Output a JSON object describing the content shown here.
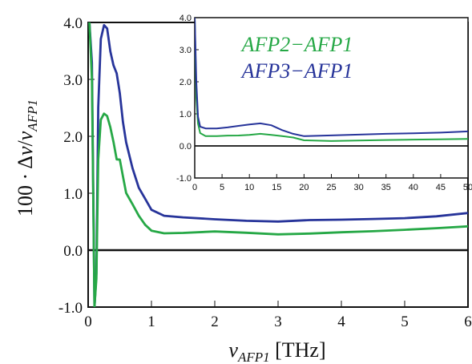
{
  "chart_data": [
    {
      "type": "line",
      "xlabel": "ν_AFP1 [THz]",
      "ylabel": "100·Δν/ν_AFP1",
      "xlim": [
        0,
        6
      ],
      "ylim": [
        -1.0,
        4.0
      ],
      "xticks": [
        "0",
        "1",
        "2",
        "3",
        "4",
        "5",
        "6"
      ],
      "yticks": [
        "-1.0",
        "0.0",
        "1.0",
        "2.0",
        "3.0",
        "4.0"
      ],
      "reference_line_y": 0,
      "series": [
        {
          "name": "AFP3 − AFP1",
          "color": "#27349a",
          "x": [
            0.02,
            0.06,
            0.1,
            0.13,
            0.16,
            0.2,
            0.25,
            0.3,
            0.35,
            0.4,
            0.45,
            0.5,
            0.55,
            0.6,
            0.7,
            0.8,
            0.9,
            1.0,
            1.2,
            1.5,
            2.0,
            2.5,
            3.0,
            3.5,
            4.0,
            4.5,
            5.0,
            5.5,
            6.0
          ],
          "y": [
            4.0,
            3.3,
            -1.0,
            -0.4,
            2.5,
            3.7,
            3.95,
            3.9,
            3.5,
            3.25,
            3.1,
            2.75,
            2.25,
            1.9,
            1.45,
            1.1,
            0.9,
            0.7,
            0.6,
            0.58,
            0.55,
            0.52,
            0.5,
            0.52,
            0.53,
            0.55,
            0.57,
            0.6,
            0.65
          ]
        },
        {
          "name": "AFP2 − AFP1",
          "color": "#26a846",
          "x": [
            0.02,
            0.06,
            0.1,
            0.13,
            0.16,
            0.2,
            0.25,
            0.3,
            0.35,
            0.4,
            0.45,
            0.5,
            0.55,
            0.6,
            0.7,
            0.8,
            0.9,
            1.0,
            1.2,
            1.5,
            2.0,
            2.5,
            3.0,
            3.5,
            4.0,
            4.5,
            5.0,
            5.5,
            6.0
          ],
          "y": [
            4.0,
            3.0,
            -1.0,
            -0.5,
            1.6,
            2.3,
            2.4,
            2.35,
            2.15,
            1.9,
            1.6,
            1.6,
            1.3,
            1.0,
            0.8,
            0.6,
            0.45,
            0.35,
            0.3,
            0.3,
            0.32,
            0.3,
            0.28,
            0.3,
            0.32,
            0.33,
            0.35,
            0.38,
            0.42
          ]
        }
      ]
    },
    {
      "type": "line",
      "xlim": [
        0,
        50
      ],
      "ylim": [
        -1.0,
        4.0
      ],
      "xticks": [
        "0",
        "5",
        "10",
        "15",
        "20",
        "25",
        "30",
        "35",
        "40",
        "45",
        "50"
      ],
      "yticks": [
        "-1.0",
        "0.0",
        "1.0",
        "2.0",
        "3.0",
        "4.0"
      ],
      "reference_line_y": 0,
      "legend_placement": "top-center",
      "series": [
        {
          "name": "AFP2 − AFP1",
          "label": "AFP2−AFP1",
          "color": "#26a846",
          "x": [
            0,
            0.3,
            0.6,
            1,
            2,
            4,
            6,
            8,
            10,
            12,
            14,
            16,
            18,
            20,
            25,
            30,
            35,
            40,
            45,
            50
          ],
          "y": [
            4.0,
            1.5,
            0.7,
            0.4,
            0.3,
            0.3,
            0.32,
            0.33,
            0.35,
            0.38,
            0.34,
            0.3,
            0.26,
            0.18,
            0.16,
            0.17,
            0.18,
            0.19,
            0.2,
            0.22
          ]
        },
        {
          "name": "AFP3 − AFP1",
          "label": "AFP3−AFP1",
          "color": "#27349a",
          "x": [
            0,
            0.3,
            0.6,
            1,
            2,
            4,
            6,
            8,
            10,
            12,
            14,
            16,
            18,
            20,
            25,
            30,
            35,
            40,
            45,
            50
          ],
          "y": [
            4.0,
            2.0,
            0.9,
            0.6,
            0.55,
            0.55,
            0.58,
            0.62,
            0.66,
            0.7,
            0.65,
            0.5,
            0.38,
            0.3,
            0.32,
            0.35,
            0.38,
            0.4,
            0.42,
            0.45
          ]
        }
      ]
    }
  ]
}
